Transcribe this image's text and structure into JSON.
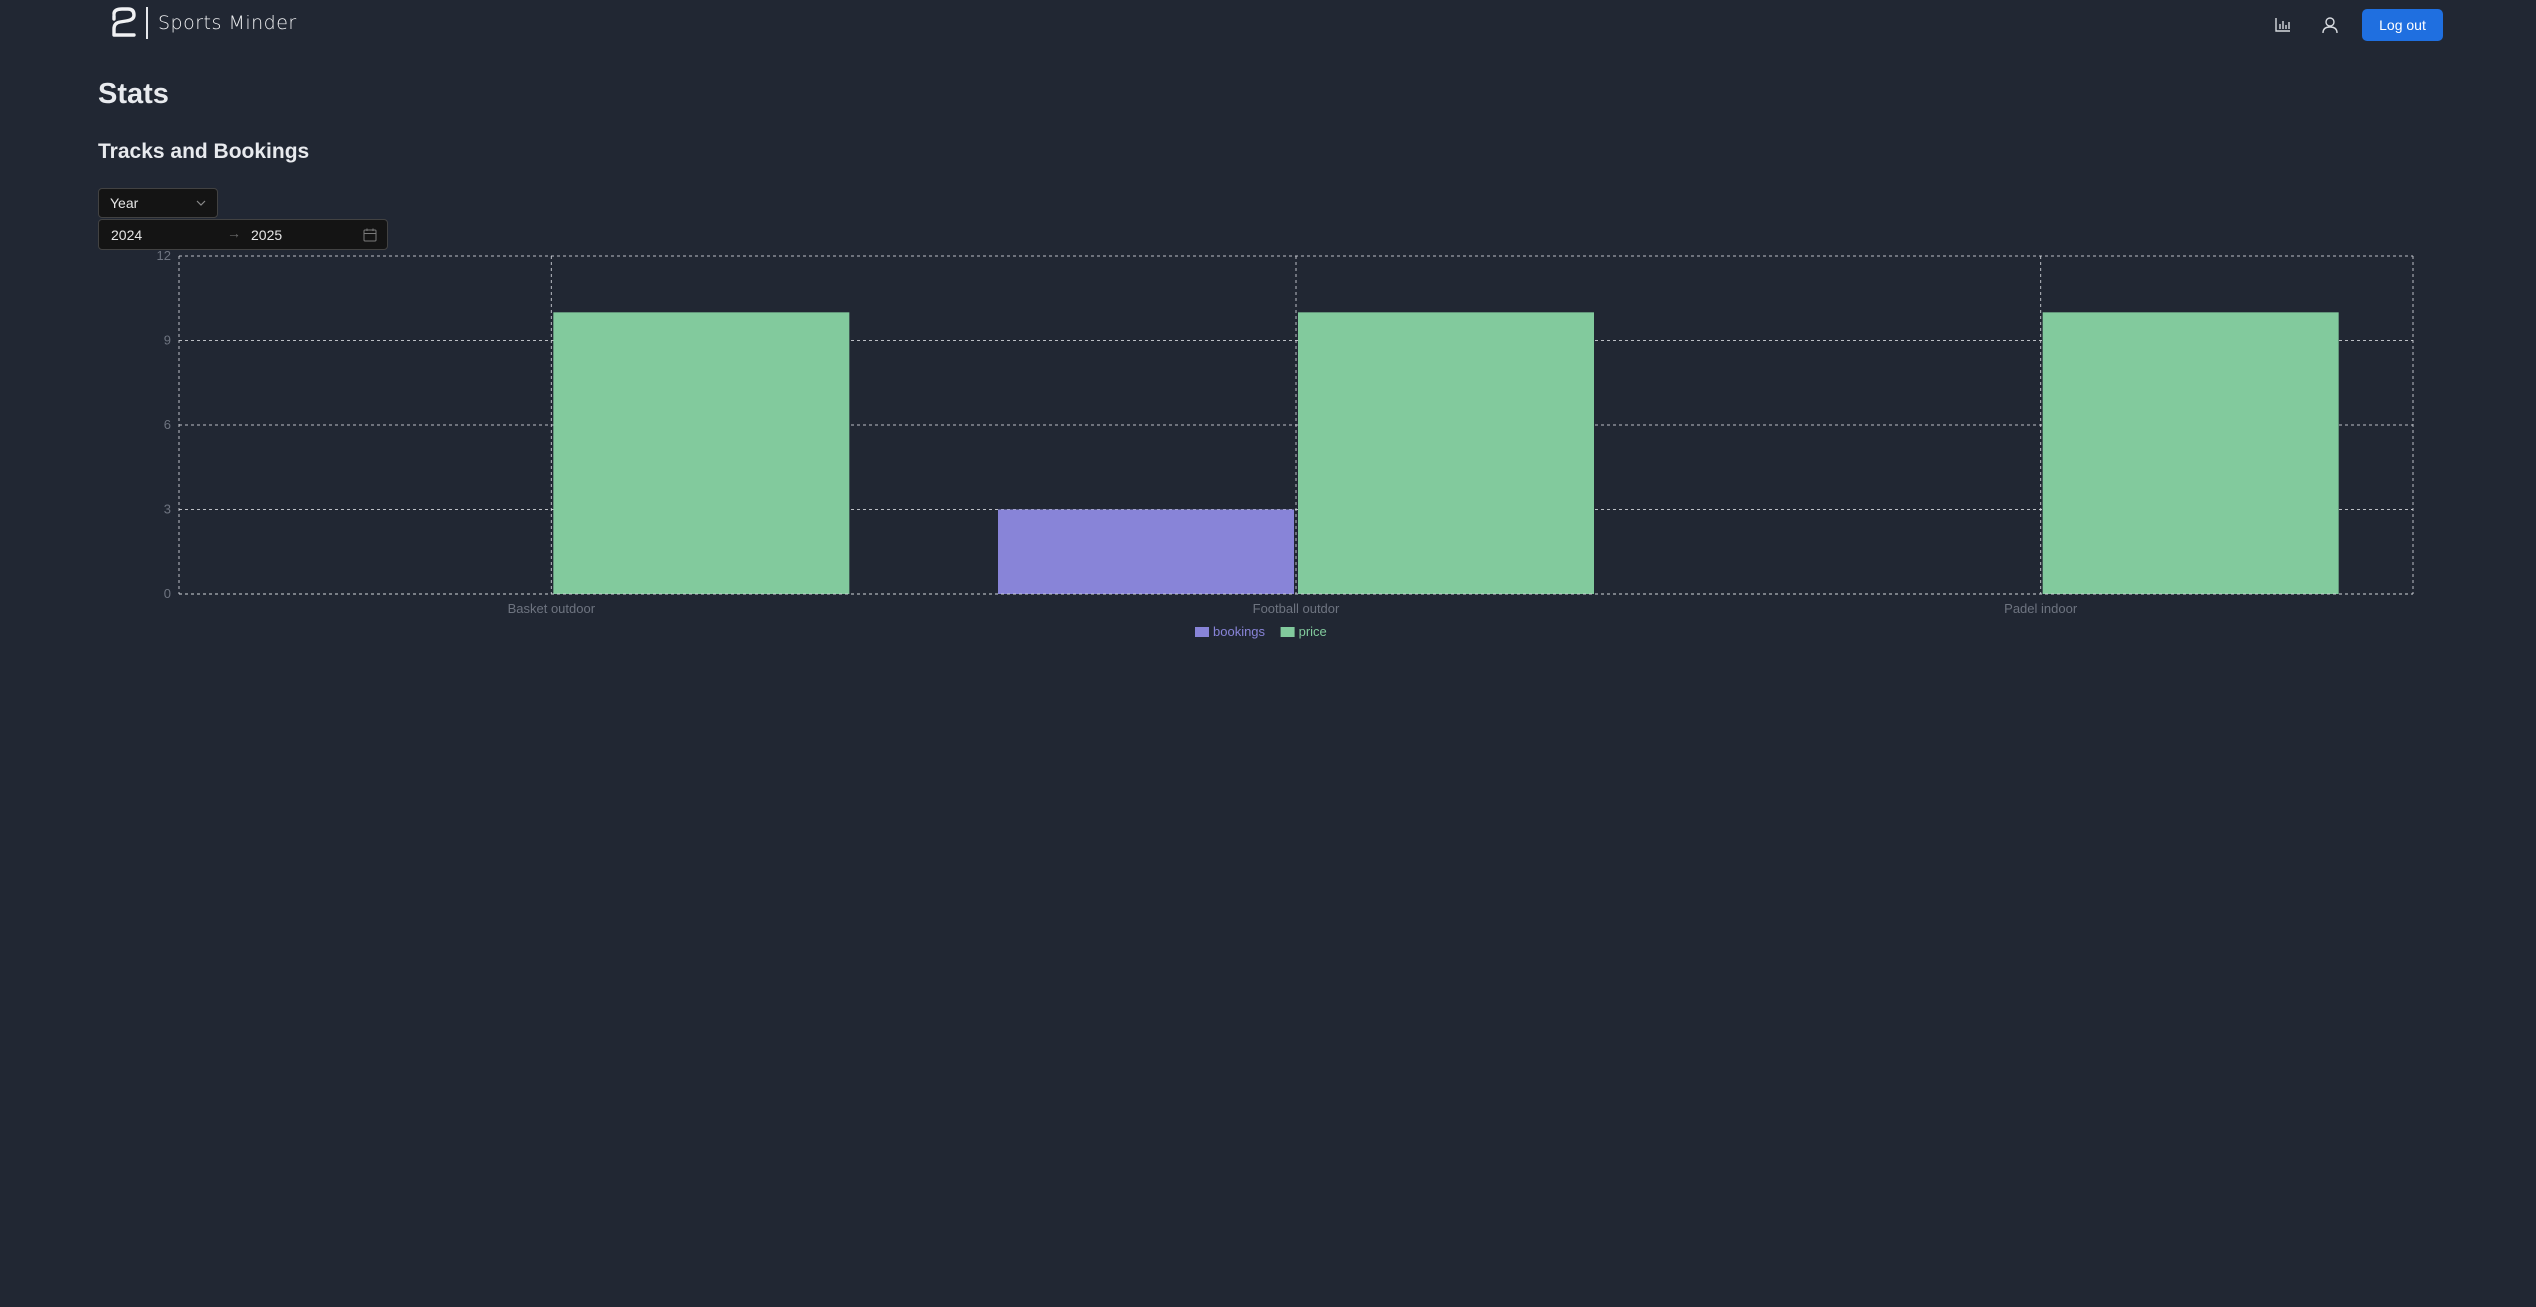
{
  "app": {
    "name": "Sports Minder"
  },
  "header": {
    "stats_icon": "bar-chart-icon",
    "user_icon": "user-icon",
    "logout_label": "Log out"
  },
  "page": {
    "title": "Stats",
    "section_title": "Tracks and Bookings"
  },
  "filters": {
    "period_value": "Year",
    "range_from": "2024",
    "range_to": "2025",
    "range_separator": "→"
  },
  "colors": {
    "bookings": "#8884d8",
    "price": "#82ca9d",
    "accent": "#1f6fe0",
    "background": "#212733"
  },
  "chart_data": {
    "type": "bar",
    "categories": [
      "Basket outdoor",
      "Football outdor",
      "Padel indoor"
    ],
    "series": [
      {
        "name": "bookings",
        "values": [
          0,
          3,
          0
        ]
      },
      {
        "name": "price",
        "values": [
          10,
          10,
          10
        ]
      }
    ],
    "yticks": [
      0,
      3,
      6,
      9,
      12
    ],
    "ylim": [
      0,
      12
    ],
    "grid": true,
    "legend": "bottom-center"
  }
}
